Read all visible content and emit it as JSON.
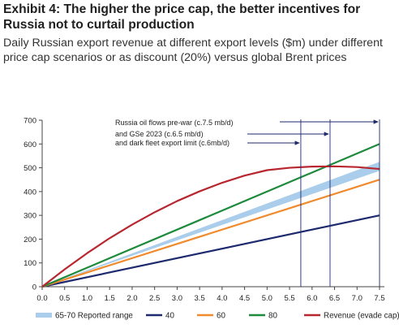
{
  "header": {
    "title": "Exhibit 4: The higher the price cap, the better incentives for Russia not to curtail production",
    "subtitle": "Daily Russian export revenue at different export levels ($m) under different price cap scenarios or as discount (20%) versus global Brent prices"
  },
  "chart_data": {
    "type": "line",
    "xlim": [
      0,
      7.5
    ],
    "ylim": [
      0,
      700
    ],
    "x_ticks": [
      "0.0",
      "0.5",
      "1.0",
      "1.5",
      "2.0",
      "2.5",
      "3.0",
      "3.5",
      "4.0",
      "4.5",
      "5.0",
      "5.5",
      "6.0",
      "6.5",
      "7.0",
      "7.5"
    ],
    "y_ticks": [
      "0",
      "100",
      "200",
      "300",
      "400",
      "500",
      "600",
      "700"
    ],
    "grid": false,
    "legend_position": "bottom",
    "annotations": [
      {
        "text": "Russia oil flows pre-war (c.7.5 mb/d)",
        "x": 7.5
      },
      {
        "text": "and GSe 2023 (c.6.5 mb/d)",
        "x": 6.4
      },
      {
        "text": "and dark fleet export limit (c.6mb/d)",
        "x": 5.75
      }
    ],
    "series": [
      {
        "name": "65-70 Reported range",
        "kind": "band",
        "color": "#a9cdea",
        "x": [
          0,
          7.5
        ],
        "low": [
          0,
          487
        ],
        "high": [
          0,
          525
        ]
      },
      {
        "name": "40",
        "color": "#1e2a6e",
        "x": [
          0,
          7.5
        ],
        "values": [
          0,
          300
        ]
      },
      {
        "name": "60",
        "color": "#f08a2c",
        "x": [
          0,
          7.5
        ],
        "values": [
          0,
          450
        ]
      },
      {
        "name": "80",
        "color": "#1e8a3c",
        "x": [
          0,
          7.5
        ],
        "values": [
          0,
          600
        ]
      },
      {
        "name": "Revenue (evade cap)",
        "color": "#b8262f",
        "x": [
          0,
          0.5,
          1.0,
          1.5,
          2.0,
          2.5,
          3.0,
          3.5,
          4.0,
          4.5,
          5.0,
          5.5,
          6.0,
          6.5,
          7.0,
          7.5
        ],
        "values": [
          0,
          73,
          141,
          204,
          261,
          313,
          360,
          401,
          437,
          467,
          490,
          500,
          505,
          506,
          503,
          495
        ]
      }
    ]
  }
}
